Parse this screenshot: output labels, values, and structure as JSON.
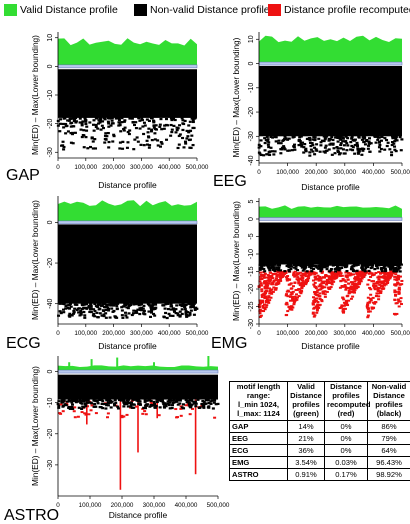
{
  "legend": {
    "items": [
      {
        "label": "Valid Distance profile",
        "color": "#33dd33"
      },
      {
        "label": "Non-valid Distance profile",
        "color": "#000000"
      },
      {
        "label": "Distance profile recomputed",
        "color": "#ee1111"
      }
    ]
  },
  "chart_data": [
    {
      "type": "scatter",
      "name": "GAP",
      "xlabel": "Distance profile",
      "ylabel": "Min(ED) – Max(Lower bounding)",
      "x_range": [
        0,
        500000
      ],
      "ylim": [
        -32,
        12
      ],
      "x_ticks": [
        "0",
        "100,000",
        "200,000",
        "300,000",
        "400,000",
        "500,000"
      ],
      "y_ticks": [
        10,
        0,
        -10,
        -20,
        -30
      ],
      "valid_band": [
        0,
        10
      ],
      "nonvalid_band": [
        -18,
        -1
      ],
      "nonvalid_outliers_min": -29,
      "recomputed_min": null
    },
    {
      "type": "scatter",
      "name": "EEG",
      "xlabel": "Distance profile",
      "ylabel": "Min(ED) – Max(Lower bounding)",
      "x_range": [
        0,
        500000
      ],
      "ylim": [
        -41,
        13
      ],
      "x_ticks": [
        "0",
        "100,000",
        "200,000",
        "300,000",
        "400,000",
        "500,000"
      ],
      "y_ticks": [
        10,
        0,
        -10,
        -20,
        -30,
        -40
      ],
      "valid_band": [
        0,
        12
      ],
      "nonvalid_band": [
        -30,
        -1
      ],
      "nonvalid_outliers_min": -38,
      "recomputed_min": null
    },
    {
      "type": "scatter",
      "name": "ECG",
      "xlabel": "Distance profile",
      "ylabel": "Min(ED) – Max(Lower bounding)",
      "x_range": [
        0,
        500000
      ],
      "ylim": [
        -50,
        13
      ],
      "x_ticks": [
        "0",
        "100,000",
        "200,000",
        "300,000",
        "400,000",
        "500,000"
      ],
      "y_ticks": [
        0,
        -20,
        -40
      ],
      "valid_band": [
        0,
        11
      ],
      "nonvalid_band": [
        -40,
        -1
      ],
      "nonvalid_outliers_min": -47,
      "recomputed_min": null
    },
    {
      "type": "scatter",
      "name": "EMG",
      "xlabel": "Distance profile",
      "ylabel": "Min(ED) – Max(Lower bounding)",
      "x_range": [
        0,
        500000
      ],
      "ylim": [
        -30,
        6
      ],
      "x_ticks": [
        "0",
        "100,000",
        "200,000",
        "300,000",
        "400,000",
        "500,000"
      ],
      "y_ticks": [
        5,
        0,
        -5,
        -10,
        -15,
        -20,
        -25,
        -30
      ],
      "valid_band": [
        0,
        4
      ],
      "nonvalid_band": [
        -13,
        -1
      ],
      "nonvalid_outliers_min": -15,
      "recomputed_min": -29
    },
    {
      "type": "scatter",
      "name": "ASTRO",
      "xlabel": "Distance profile",
      "ylabel": "Min(ED) – Max(Lower bounding)",
      "x_range": [
        0,
        500000
      ],
      "ylim": [
        -40,
        5
      ],
      "x_ticks": [
        "0",
        "100,000",
        "200,000",
        "300,000",
        "400,000",
        "500,000"
      ],
      "y_ticks": [
        0,
        -10,
        -20,
        -30
      ],
      "valid_band": [
        0,
        2
      ],
      "nonvalid_band": [
        -9,
        -1
      ],
      "nonvalid_outliers_min": -12,
      "recomputed_min": -38
    },
    {
      "type": "table",
      "columns": [
        "motif length range:\nl_min 1024,\nl_max: 1124",
        "Valid Distance profiles (green)",
        "Distance profiles recomputed (red)",
        "Non-valid Distance profiles (black)"
      ],
      "rows": [
        [
          "GAP",
          "14%",
          "0%",
          "86%"
        ],
        [
          "EEG",
          "21%",
          "0%",
          "79%"
        ],
        [
          "ECG",
          "36%",
          "0%",
          "64%"
        ],
        [
          "EMG",
          "3.54%",
          "0.03%",
          "96.43%"
        ],
        [
          "ASTRO",
          "0.91%",
          "0.17%",
          "98.92%"
        ]
      ]
    }
  ]
}
